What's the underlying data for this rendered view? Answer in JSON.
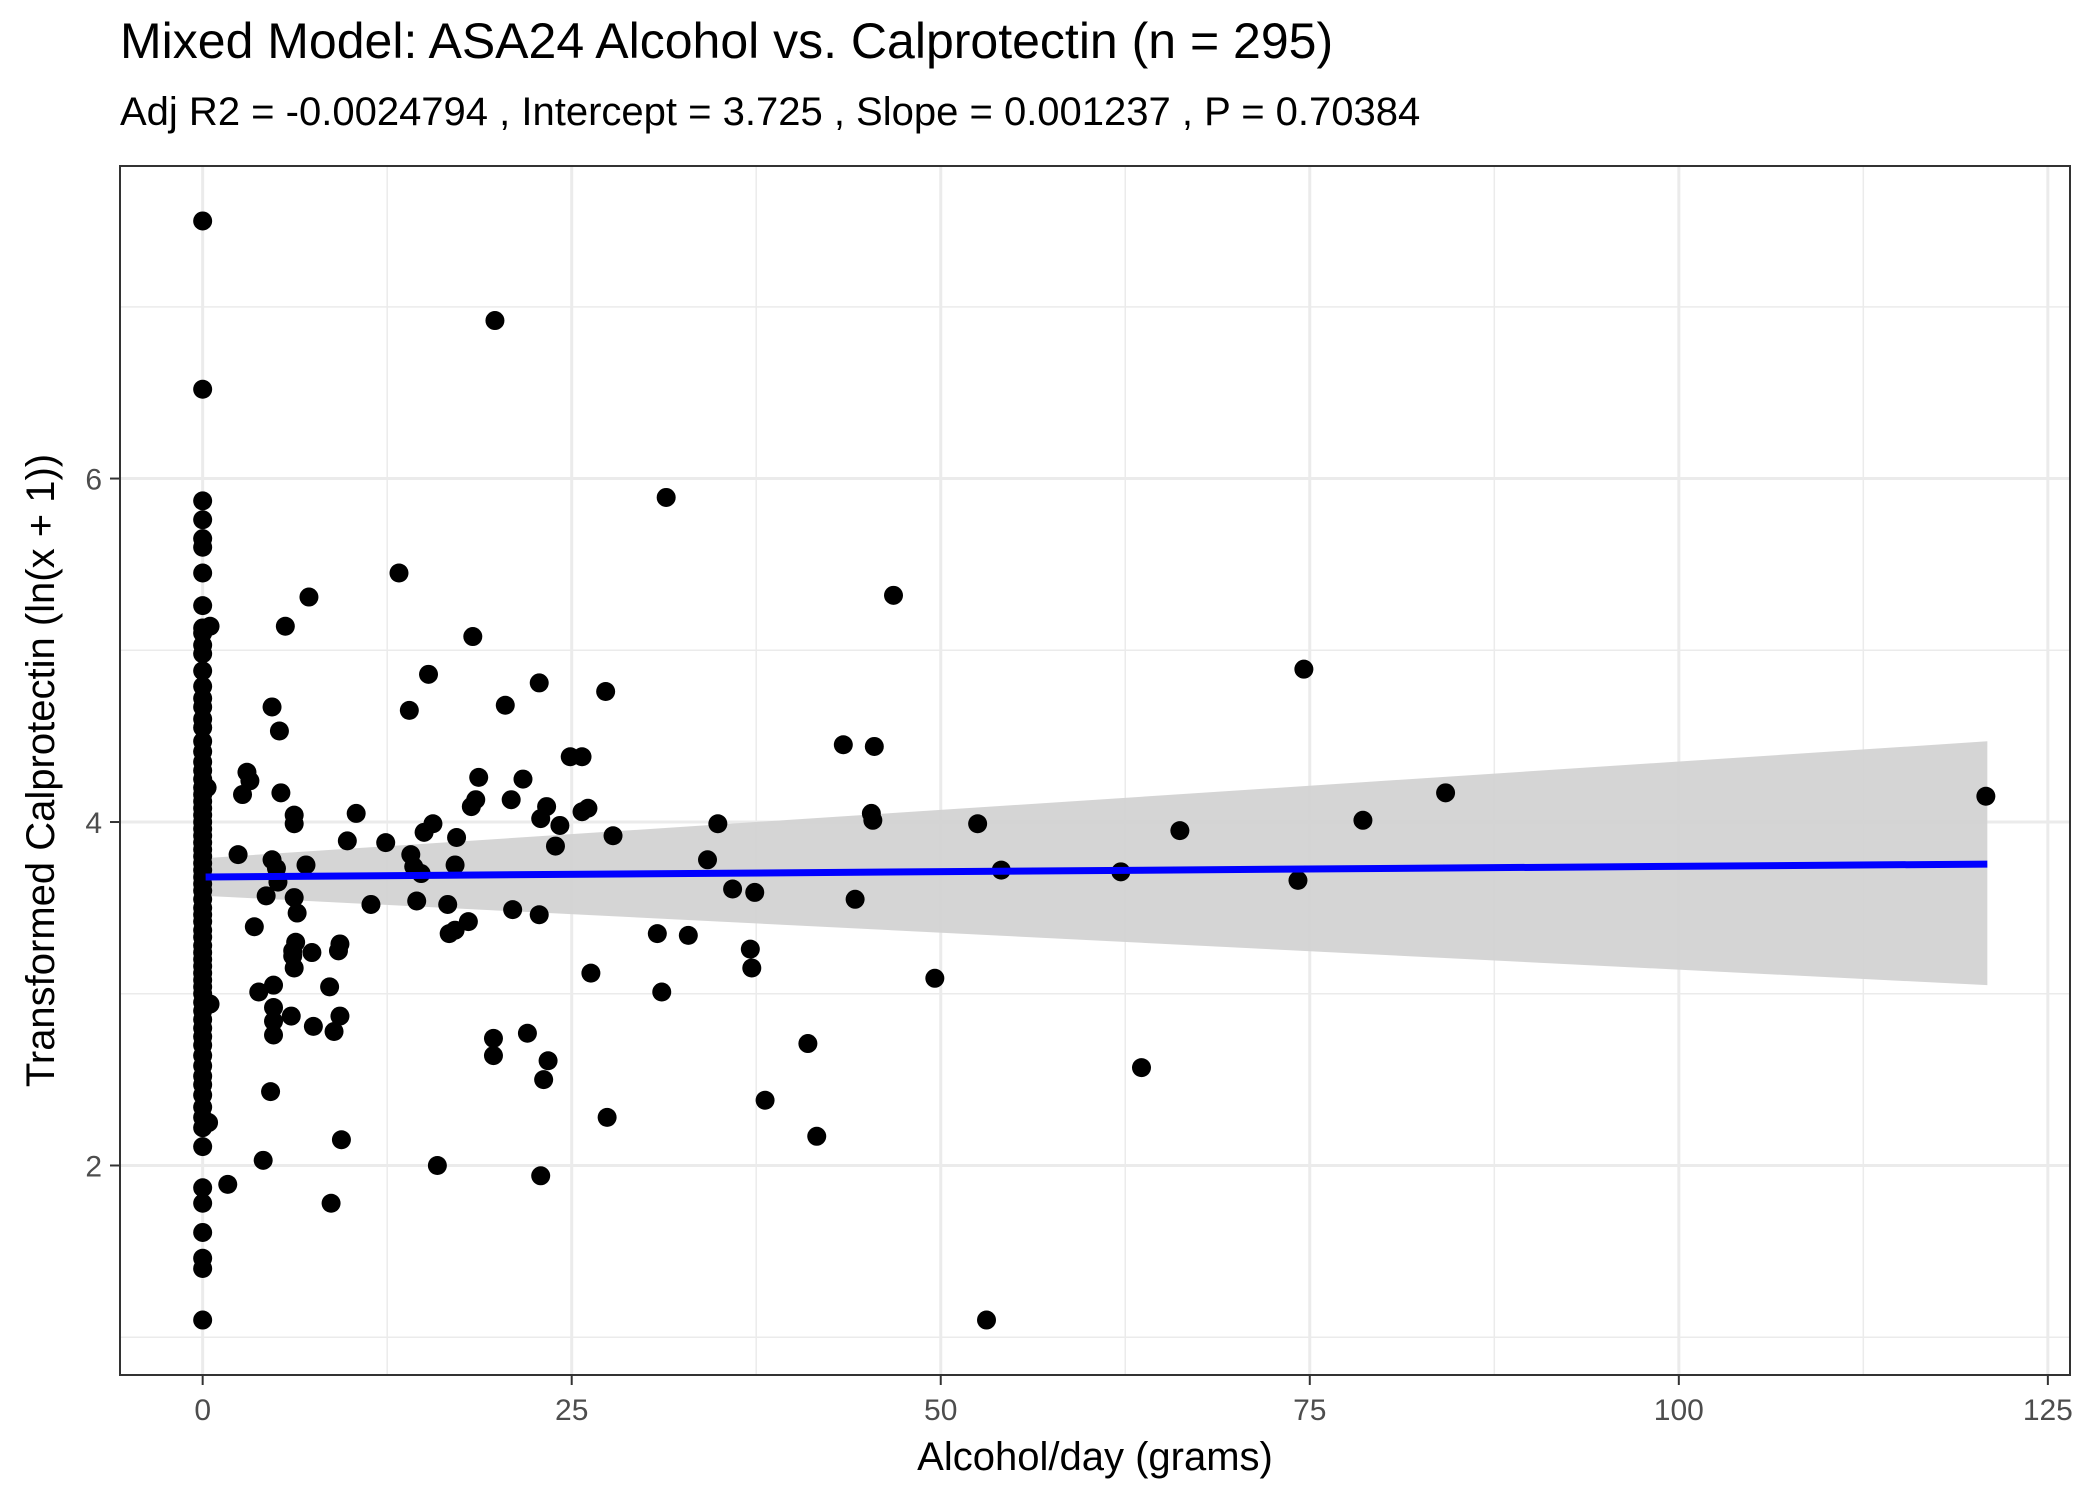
{
  "title": "Mixed Model: ASA24 Alcohol vs. Calprotectin (n = 295)",
  "subtitle": "Adj R2 =  -0.0024794 , Intercept =  3.725 , Slope =  0.001237 , P =  0.70384",
  "chart_data": {
    "type": "scatter",
    "title": "Mixed Model: ASA24 Alcohol vs. Calprotectin (n = 295)",
    "subtitle": "Adj R2 =  -0.0024794 , Intercept =  3.725 , Slope =  0.001237 , P =  0.70384",
    "xlabel": "Alcohol/day (grams)",
    "ylabel": "Transformed Calprotectin (ln(x + 1))",
    "xlim": [
      -5.6,
      126.5
    ],
    "ylim": [
      0.78,
      7.82
    ],
    "x_ticks": [
      0,
      25,
      50,
      75,
      100,
      125
    ],
    "x_tick_labels": [
      "0",
      "25",
      "50",
      "75",
      "100",
      "125"
    ],
    "y_ticks": [
      2,
      4,
      6
    ],
    "y_tick_labels": [
      "2",
      "4",
      "6"
    ],
    "grid": true,
    "legend": "none",
    "colors": {
      "points": "#000000",
      "fit_line": "#0000ff",
      "ribbon": "#d3d3d3",
      "grid": "#ebebeb",
      "panel_border": "#333333"
    },
    "fit_line": {
      "x": [
        0.2,
        120.9
      ],
      "y": [
        3.68,
        3.755
      ]
    },
    "confidence_band": {
      "x": [
        0.2,
        120.9
      ],
      "upper": [
        3.79,
        4.47
      ],
      "lower": [
        3.57,
        3.05
      ]
    },
    "x_zero_points": [
      7.5,
      6.52,
      5.87,
      5.76,
      5.65,
      5.6,
      5.45,
      5.26,
      5.13,
      5.1,
      5.03,
      4.98,
      4.88,
      4.79,
      4.72,
      4.67,
      4.6,
      4.55,
      4.47,
      4.41,
      4.35,
      4.3,
      4.25,
      4.2,
      4.16,
      4.12,
      4.08,
      4.04,
      4.0,
      3.96,
      3.92,
      3.88,
      3.84,
      3.8,
      3.76,
      3.72,
      3.68,
      3.64,
      3.6,
      3.55,
      3.5,
      3.46,
      3.42,
      3.37,
      3.33,
      3.28,
      3.24,
      3.2,
      3.16,
      3.12,
      3.08,
      3.04,
      3.0,
      2.95,
      2.9,
      2.85,
      2.8,
      2.75,
      2.7,
      2.64,
      2.58,
      2.52,
      2.47,
      2.41,
      2.34,
      2.28,
      2.22,
      2.11,
      1.87,
      1.78,
      1.61,
      1.46,
      1.4,
      1.1
    ],
    "points": [
      {
        "x": 0.5,
        "y": 5.14
      },
      {
        "x": 0.3,
        "y": 4.2
      },
      {
        "x": 0.4,
        "y": 2.25
      },
      {
        "x": 0.5,
        "y": 2.94
      },
      {
        "x": 1.7,
        "y": 1.89
      },
      {
        "x": 2.4,
        "y": 3.81
      },
      {
        "x": 2.7,
        "y": 4.16
      },
      {
        "x": 3.0,
        "y": 4.29
      },
      {
        "x": 3.2,
        "y": 4.24
      },
      {
        "x": 3.5,
        "y": 3.39
      },
      {
        "x": 3.8,
        "y": 3.01
      },
      {
        "x": 4.1,
        "y": 2.03
      },
      {
        "x": 4.3,
        "y": 3.57
      },
      {
        "x": 4.6,
        "y": 2.43
      },
      {
        "x": 4.7,
        "y": 4.67
      },
      {
        "x": 4.7,
        "y": 3.78
      },
      {
        "x": 4.8,
        "y": 3.05
      },
      {
        "x": 4.8,
        "y": 2.92
      },
      {
        "x": 4.8,
        "y": 2.84
      },
      {
        "x": 4.8,
        "y": 2.76
      },
      {
        "x": 5.0,
        "y": 3.73
      },
      {
        "x": 5.1,
        "y": 3.65
      },
      {
        "x": 5.2,
        "y": 4.53
      },
      {
        "x": 5.3,
        "y": 4.17
      },
      {
        "x": 5.6,
        "y": 5.14
      },
      {
        "x": 6.0,
        "y": 2.87
      },
      {
        "x": 6.1,
        "y": 3.25
      },
      {
        "x": 6.1,
        "y": 3.22
      },
      {
        "x": 6.2,
        "y": 4.04
      },
      {
        "x": 6.2,
        "y": 3.99
      },
      {
        "x": 6.2,
        "y": 3.56
      },
      {
        "x": 6.2,
        "y": 3.15
      },
      {
        "x": 6.3,
        "y": 3.3
      },
      {
        "x": 6.4,
        "y": 3.47
      },
      {
        "x": 7.0,
        "y": 3.75
      },
      {
        "x": 7.2,
        "y": 5.31
      },
      {
        "x": 7.4,
        "y": 3.24
      },
      {
        "x": 7.5,
        "y": 2.81
      },
      {
        "x": 8.6,
        "y": 3.04
      },
      {
        "x": 8.7,
        "y": 1.78
      },
      {
        "x": 8.9,
        "y": 2.78
      },
      {
        "x": 9.2,
        "y": 3.25
      },
      {
        "x": 9.3,
        "y": 3.29
      },
      {
        "x": 9.3,
        "y": 2.87
      },
      {
        "x": 9.4,
        "y": 2.15
      },
      {
        "x": 9.8,
        "y": 3.89
      },
      {
        "x": 10.4,
        "y": 4.05
      },
      {
        "x": 11.4,
        "y": 3.52
      },
      {
        "x": 12.4,
        "y": 3.88
      },
      {
        "x": 13.3,
        "y": 5.45
      },
      {
        "x": 14.0,
        "y": 4.65
      },
      {
        "x": 14.1,
        "y": 3.81
      },
      {
        "x": 14.3,
        "y": 3.74
      },
      {
        "x": 14.5,
        "y": 3.54
      },
      {
        "x": 14.8,
        "y": 3.7
      },
      {
        "x": 15.0,
        "y": 3.94
      },
      {
        "x": 15.3,
        "y": 4.86
      },
      {
        "x": 15.6,
        "y": 3.99
      },
      {
        "x": 15.9,
        "y": 2.0
      },
      {
        "x": 16.6,
        "y": 3.52
      },
      {
        "x": 16.7,
        "y": 3.35
      },
      {
        "x": 17.1,
        "y": 3.75
      },
      {
        "x": 17.1,
        "y": 3.37
      },
      {
        "x": 17.2,
        "y": 3.91
      },
      {
        "x": 18.0,
        "y": 3.42
      },
      {
        "x": 18.2,
        "y": 4.09
      },
      {
        "x": 18.3,
        "y": 5.08
      },
      {
        "x": 18.5,
        "y": 4.13
      },
      {
        "x": 18.7,
        "y": 4.26
      },
      {
        "x": 19.7,
        "y": 2.74
      },
      {
        "x": 19.7,
        "y": 2.64
      },
      {
        "x": 19.8,
        "y": 6.92
      },
      {
        "x": 20.5,
        "y": 4.68
      },
      {
        "x": 20.9,
        "y": 4.13
      },
      {
        "x": 21.0,
        "y": 3.49
      },
      {
        "x": 21.7,
        "y": 4.25
      },
      {
        "x": 22.0,
        "y": 2.77
      },
      {
        "x": 22.8,
        "y": 3.46
      },
      {
        "x": 22.8,
        "y": 4.81
      },
      {
        "x": 22.9,
        "y": 4.02
      },
      {
        "x": 22.9,
        "y": 1.94
      },
      {
        "x": 23.1,
        "y": 2.5
      },
      {
        "x": 23.3,
        "y": 4.09
      },
      {
        "x": 23.4,
        "y": 2.61
      },
      {
        "x": 23.9,
        "y": 3.86
      },
      {
        "x": 24.2,
        "y": 3.98
      },
      {
        "x": 24.9,
        "y": 4.38
      },
      {
        "x": 25.7,
        "y": 4.38
      },
      {
        "x": 25.7,
        "y": 4.06
      },
      {
        "x": 26.1,
        "y": 4.08
      },
      {
        "x": 26.3,
        "y": 3.12
      },
      {
        "x": 27.3,
        "y": 4.76
      },
      {
        "x": 27.4,
        "y": 2.28
      },
      {
        "x": 27.8,
        "y": 3.92
      },
      {
        "x": 30.8,
        "y": 3.35
      },
      {
        "x": 31.1,
        "y": 3.01
      },
      {
        "x": 31.4,
        "y": 5.89
      },
      {
        "x": 32.9,
        "y": 3.34
      },
      {
        "x": 34.2,
        "y": 3.78
      },
      {
        "x": 34.9,
        "y": 3.99
      },
      {
        "x": 35.9,
        "y": 3.61
      },
      {
        "x": 37.1,
        "y": 3.26
      },
      {
        "x": 37.2,
        "y": 3.15
      },
      {
        "x": 37.4,
        "y": 3.59
      },
      {
        "x": 38.1,
        "y": 2.38
      },
      {
        "x": 41.0,
        "y": 2.71
      },
      {
        "x": 41.6,
        "y": 2.17
      },
      {
        "x": 43.4,
        "y": 4.45
      },
      {
        "x": 44.2,
        "y": 3.55
      },
      {
        "x": 45.3,
        "y": 4.05
      },
      {
        "x": 45.4,
        "y": 4.01
      },
      {
        "x": 45.5,
        "y": 4.44
      },
      {
        "x": 46.8,
        "y": 5.32
      },
      {
        "x": 49.6,
        "y": 3.09
      },
      {
        "x": 52.5,
        "y": 3.99
      },
      {
        "x": 53.1,
        "y": 1.1
      },
      {
        "x": 54.1,
        "y": 3.72
      },
      {
        "x": 62.2,
        "y": 3.71
      },
      {
        "x": 63.6,
        "y": 2.57
      },
      {
        "x": 66.2,
        "y": 3.95
      },
      {
        "x": 74.2,
        "y": 3.66
      },
      {
        "x": 74.6,
        "y": 4.89
      },
      {
        "x": 78.6,
        "y": 4.01
      },
      {
        "x": 84.2,
        "y": 4.17
      },
      {
        "x": 120.8,
        "y": 4.15
      }
    ]
  }
}
